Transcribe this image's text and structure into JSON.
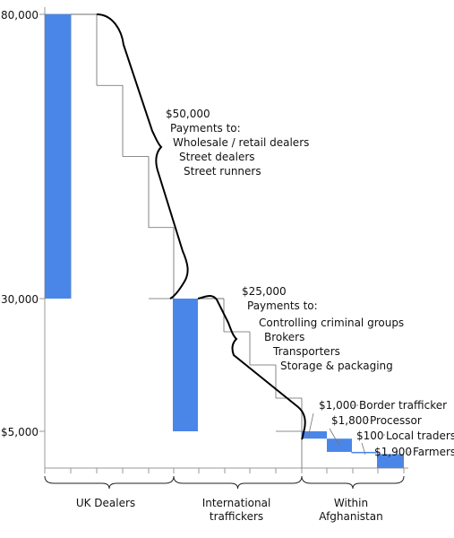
{
  "chart_data": {
    "type": "bar",
    "subtype": "waterfall",
    "y_ticks": [
      "$80,000",
      "$30,000",
      "$5,000"
    ],
    "y_tick_values": [
      80000,
      30000,
      5000
    ],
    "bars": [
      {
        "stage": "UK Dealers",
        "top": 80000,
        "bottom": 30000
      },
      {
        "stage": "International traffickers",
        "top": 30000,
        "bottom": 5000
      },
      {
        "stage": "Within Afghanistan",
        "label": "$1,000",
        "name": "Border trafficker",
        "top": 5000,
        "bottom": 4000
      },
      {
        "stage": "Within Afghanistan",
        "label": "$1,800",
        "name": "Processor",
        "top": 4000,
        "bottom": 2200
      },
      {
        "stage": "Within Afghanistan",
        "label": "$100",
        "name": "Local traders",
        "top": 2200,
        "bottom": 2100
      },
      {
        "stage": "Within Afghanistan",
        "label": "$1,900",
        "name": "Farmers",
        "top": 1900,
        "bottom": 0
      }
    ],
    "annotations": [
      {
        "amount": "$50,000",
        "heading": "Payments to:",
        "items": [
          "Wholesale / retail dealers",
          "Street dealers",
          "Street runners"
        ]
      },
      {
        "amount": "$25,000",
        "heading": "Payments to:",
        "items": [
          "Controlling criminal groups",
          "Brokers",
          "Transporters",
          "Storage & packaging"
        ]
      }
    ],
    "groups": [
      {
        "lines": [
          "UK Dealers"
        ]
      },
      {
        "lines": [
          "International",
          "traffickers"
        ]
      },
      {
        "lines": [
          "Within",
          "Afghanistan"
        ]
      }
    ],
    "colors": {
      "bar": "#4a86e8",
      "line": "#000000",
      "step": "#666666"
    }
  }
}
